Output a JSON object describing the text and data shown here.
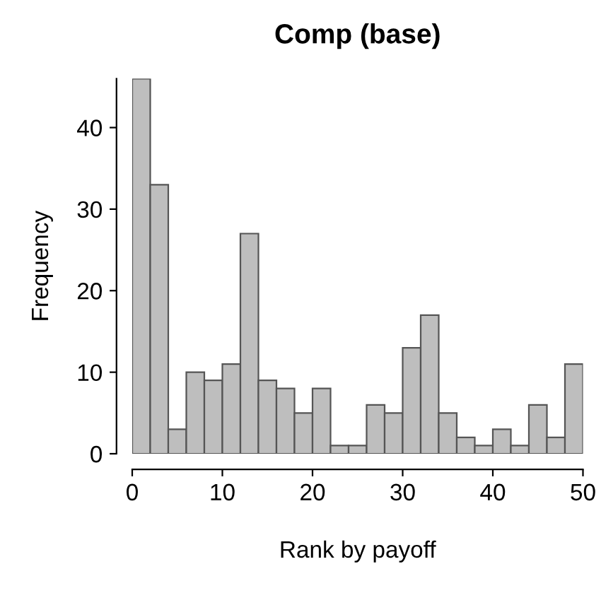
{
  "chart_data": {
    "type": "histogram",
    "title": "Comp (base)",
    "xlabel": "Rank by payoff",
    "ylabel": "Frequency",
    "bins": [
      0,
      2,
      4,
      6,
      8,
      10,
      12,
      14,
      16,
      18,
      20,
      22,
      24,
      26,
      28,
      30,
      32,
      34,
      36,
      38,
      40,
      42,
      44,
      46,
      48,
      50
    ],
    "values": [
      46,
      33,
      3,
      10,
      9,
      11,
      27,
      9,
      8,
      5,
      8,
      1,
      1,
      6,
      5,
      13,
      17,
      5,
      2,
      1,
      3,
      1,
      6,
      2,
      11
    ],
    "color": "#bebebe",
    "xlim": [
      0,
      50
    ],
    "ylim": [
      0,
      46
    ],
    "xticks": [
      0,
      10,
      20,
      30,
      40,
      50
    ],
    "yticks": [
      0,
      10,
      20,
      30,
      40
    ],
    "grid": false
  }
}
